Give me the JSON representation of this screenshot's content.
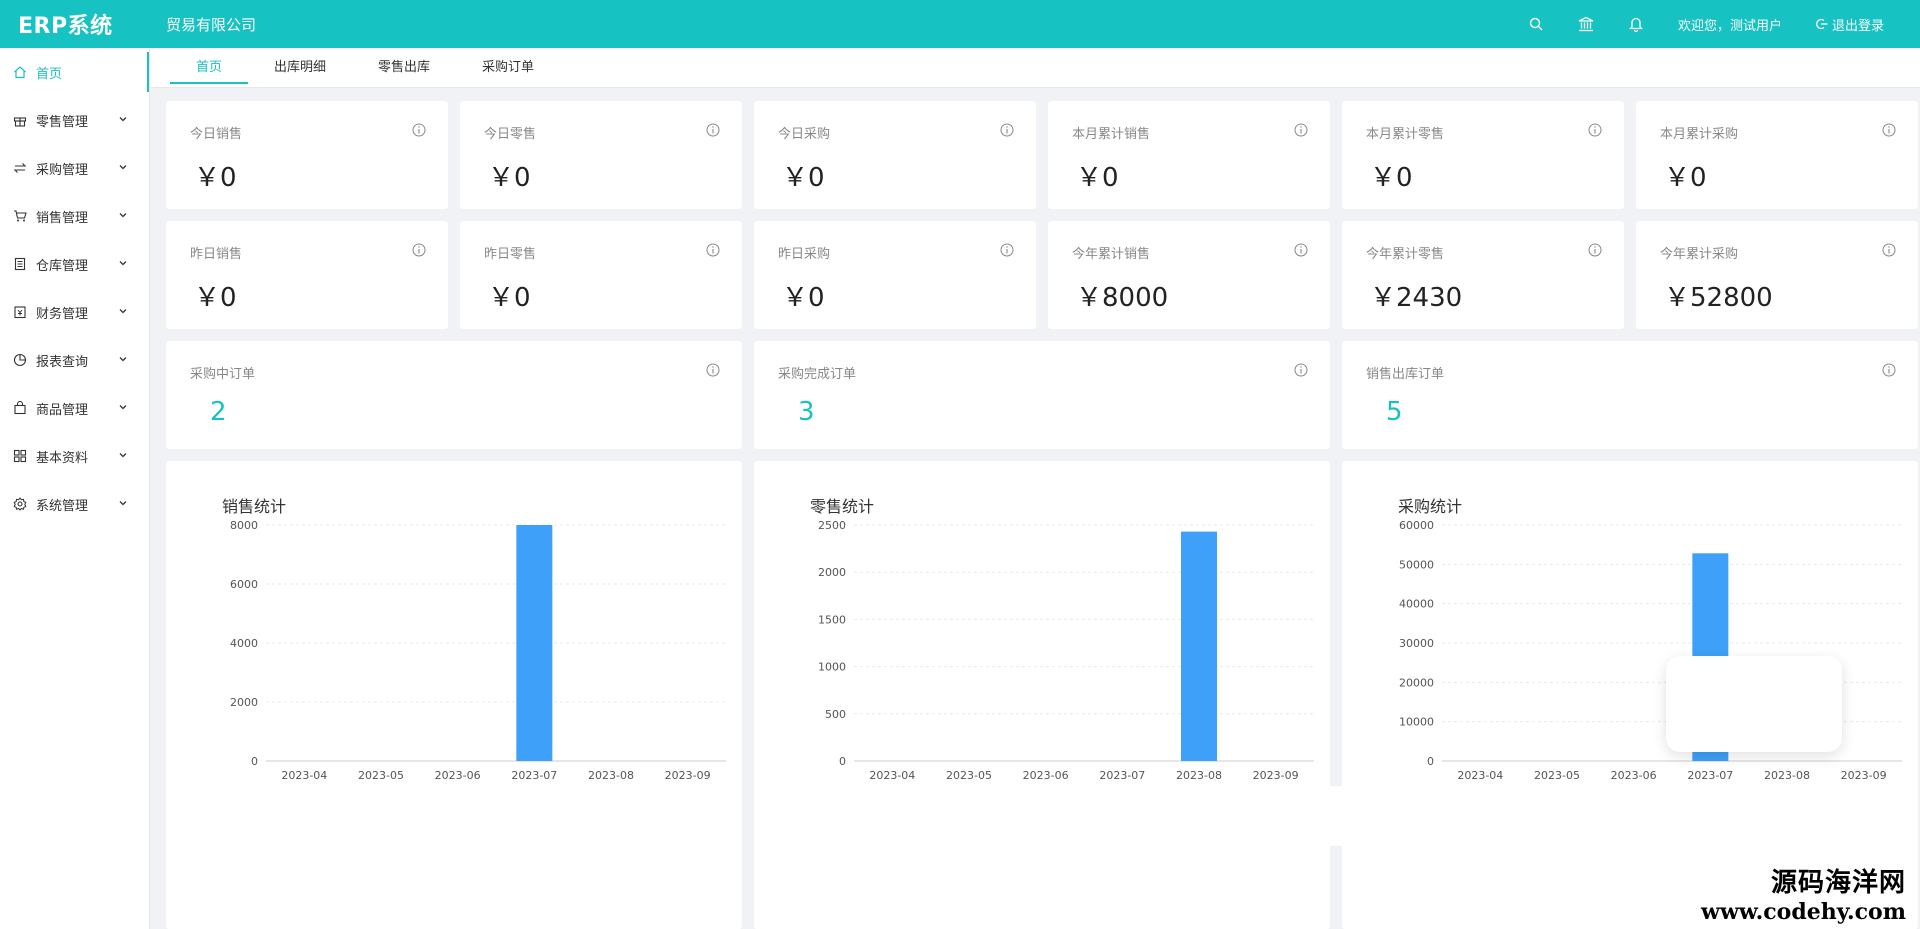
{
  "app": {
    "title": "ERP系统",
    "company": "贸易有限公司"
  },
  "header": {
    "welcome": "欢迎您，测试用户",
    "logout": "退出登录",
    "icons": [
      "search-icon",
      "bank-icon",
      "bell-icon"
    ]
  },
  "sidebar": {
    "items": [
      {
        "label": "首页",
        "icon": "home-icon",
        "active": true
      },
      {
        "label": "零售管理",
        "icon": "gift-icon"
      },
      {
        "label": "采购管理",
        "icon": "swap-icon"
      },
      {
        "label": "销售管理",
        "icon": "cart-icon"
      },
      {
        "label": "仓库管理",
        "icon": "ledger-icon"
      },
      {
        "label": "财务管理",
        "icon": "account-book-icon"
      },
      {
        "label": "报表查询",
        "icon": "pie-chart-icon"
      },
      {
        "label": "商品管理",
        "icon": "shopping-bag-icon"
      },
      {
        "label": "基本资料",
        "icon": "appstore-icon"
      },
      {
        "label": "系统管理",
        "icon": "setting-icon"
      }
    ]
  },
  "tabs": [
    "首页",
    "出库明细",
    "零售出库",
    "采购订单"
  ],
  "stats_row1": [
    {
      "label": "今日销售",
      "value": "￥0"
    },
    {
      "label": "今日零售",
      "value": "￥0"
    },
    {
      "label": "今日采购",
      "value": "￥0"
    },
    {
      "label": "本月累计销售",
      "value": "￥0"
    },
    {
      "label": "本月累计零售",
      "value": "￥0"
    },
    {
      "label": "本月累计采购",
      "value": "￥0"
    }
  ],
  "stats_row2": [
    {
      "label": "昨日销售",
      "value": "￥0"
    },
    {
      "label": "昨日零售",
      "value": "￥0"
    },
    {
      "label": "昨日采购",
      "value": "￥0"
    },
    {
      "label": "今年累计销售",
      "value": "￥8000"
    },
    {
      "label": "今年累计零售",
      "value": "￥2430"
    },
    {
      "label": "今年累计采购",
      "value": "￥52800"
    }
  ],
  "orders": [
    {
      "label": "采购中订单",
      "value": "2"
    },
    {
      "label": "采购完成订单",
      "value": "3"
    },
    {
      "label": "销售出库订单",
      "value": "5"
    }
  ],
  "chart_data": [
    {
      "type": "bar",
      "title": "销售统计",
      "categories": [
        "2023-04",
        "2023-05",
        "2023-06",
        "2023-07",
        "2023-08",
        "2023-09"
      ],
      "values": [
        0,
        0,
        0,
        8000,
        0,
        0
      ],
      "ylim": [
        0,
        8000
      ],
      "yticks": [
        0,
        2000,
        4000,
        6000,
        8000
      ],
      "color": "#3ea0f8",
      "grid": true
    },
    {
      "type": "bar",
      "title": "零售统计",
      "categories": [
        "2023-04",
        "2023-05",
        "2023-06",
        "2023-07",
        "2023-08",
        "2023-09"
      ],
      "values": [
        0,
        0,
        0,
        0,
        2430,
        0
      ],
      "ylim": [
        0,
        2500
      ],
      "yticks": [
        0,
        500,
        1000,
        1500,
        2000,
        2500
      ],
      "color": "#3ea0f8",
      "grid": true
    },
    {
      "type": "bar",
      "title": "采购统计",
      "categories": [
        "2023-04",
        "2023-05",
        "2023-06",
        "2023-07",
        "2023-08",
        "2023-09"
      ],
      "values": [
        0,
        0,
        0,
        52800,
        0,
        0
      ],
      "ylim": [
        0,
        60000
      ],
      "yticks": [
        0,
        10000,
        20000,
        30000,
        40000,
        50000,
        60000
      ],
      "color": "#3ea0f8",
      "grid": true
    }
  ],
  "watermark": {
    "line1": "源码海洋网",
    "line2": "www.codehy.com"
  },
  "colors": {
    "brand": "#17c2c2",
    "bar": "#3ea0f8"
  }
}
